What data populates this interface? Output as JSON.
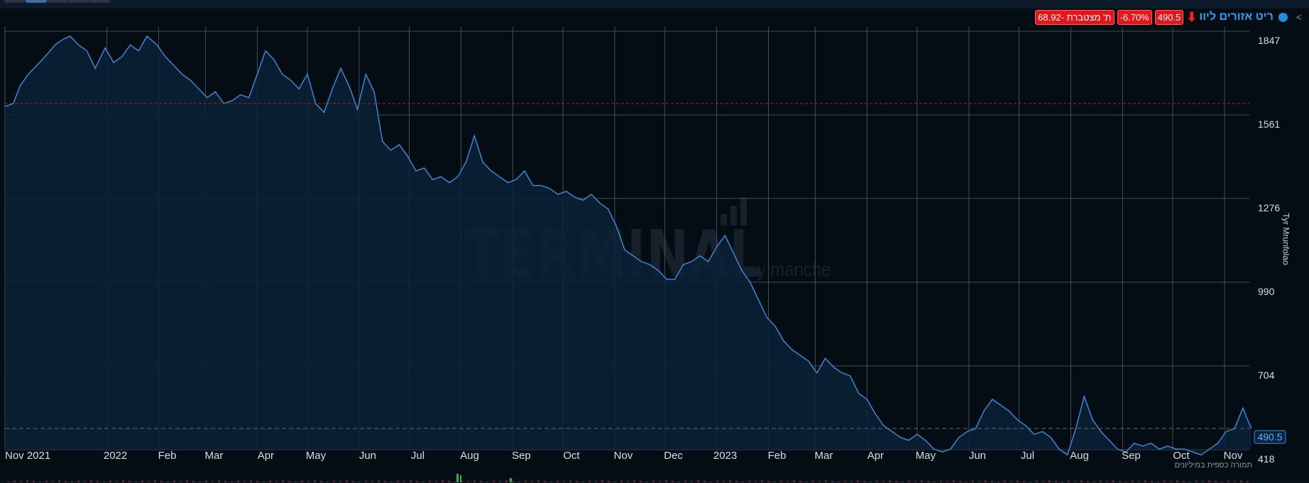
{
  "header": {
    "caret": "<",
    "stock_name": "ריט אזורים ליוו",
    "arrow": "⬇",
    "last_price": "490.5",
    "change_pct": "-6.70%",
    "cumulative_label": "ת' מצטברת -68.92"
  },
  "watermark": {
    "main": "TERMINAL",
    "sub": "by kay manche"
  },
  "volume_note": "תמורה כספית במיליונים",
  "side_text": "Tyr Mrunfolao",
  "colors": {
    "background": "#040d14",
    "line": "#3d8ee0",
    "fill": "#0b2236",
    "grid": "#4a5560",
    "badge": "#e8141c",
    "accent": "#1e8fe0"
  },
  "chart_data": {
    "type": "area",
    "title": "",
    "xlabel": "",
    "ylabel": "",
    "ylim": [
      418,
      1847
    ],
    "y_ticks": [
      1847,
      1561,
      1276,
      990,
      704,
      418
    ],
    "x_tick_labels": [
      "Nov 2021",
      "2022",
      "Feb",
      "Mar",
      "Apr",
      "May",
      "Jun",
      "Jul",
      "Aug",
      "Sep",
      "Oct",
      "Nov",
      "Dec",
      "2023",
      "Feb",
      "Mar",
      "Apr",
      "May",
      "Jun",
      "Jul",
      "Aug",
      "Sep",
      "Oct",
      "Nov"
    ],
    "x_tick_dates": [
      "2021-11-01",
      "2022-01-01",
      "2022-02-01",
      "2022-03-01",
      "2022-04-01",
      "2022-05-01",
      "2022-06-01",
      "2022-07-01",
      "2022-08-01",
      "2022-09-01",
      "2022-10-01",
      "2022-11-01",
      "2022-12-01",
      "2023-01-01",
      "2023-02-01",
      "2023-03-01",
      "2023-04-01",
      "2023-05-01",
      "2023-06-01",
      "2023-07-01",
      "2023-08-01",
      "2023-09-01",
      "2023-10-01",
      "2023-11-01"
    ],
    "last_value": 490.5,
    "reference_line": 1600,
    "dashed_level": 490.5,
    "grid": true,
    "series": [
      {
        "dates": [
          "2021-11-01",
          "2021-11-06",
          "2021-11-10",
          "2021-11-15",
          "2021-11-20",
          "2021-11-25",
          "2021-12-01",
          "2021-12-06",
          "2021-12-10",
          "2021-12-15",
          "2021-12-20",
          "2021-12-25",
          "2021-12-31",
          "2022-01-05",
          "2022-01-10",
          "2022-01-15",
          "2022-01-20",
          "2022-01-25",
          "2022-01-31",
          "2022-02-05",
          "2022-02-10",
          "2022-02-15",
          "2022-02-20",
          "2022-02-25",
          "2022-03-02",
          "2022-03-07",
          "2022-03-12",
          "2022-03-17",
          "2022-03-22",
          "2022-03-27",
          "2022-04-01",
          "2022-04-06",
          "2022-04-11",
          "2022-04-16",
          "2022-04-21",
          "2022-04-26",
          "2022-05-01",
          "2022-05-06",
          "2022-05-11",
          "2022-05-16",
          "2022-05-21",
          "2022-05-26",
          "2022-05-31",
          "2022-06-05",
          "2022-06-10",
          "2022-06-15",
          "2022-06-20",
          "2022-06-25",
          "2022-06-30",
          "2022-07-05",
          "2022-07-10",
          "2022-07-15",
          "2022-07-20",
          "2022-07-25",
          "2022-07-30",
          "2022-08-04",
          "2022-08-09",
          "2022-08-14",
          "2022-08-19",
          "2022-08-24",
          "2022-08-29",
          "2022-09-03",
          "2022-09-08",
          "2022-09-13",
          "2022-09-18",
          "2022-09-23",
          "2022-09-28",
          "2022-10-03",
          "2022-10-08",
          "2022-10-13",
          "2022-10-18",
          "2022-10-23",
          "2022-10-28",
          "2022-11-02",
          "2022-11-07",
          "2022-11-12",
          "2022-11-17",
          "2022-11-22",
          "2022-11-27",
          "2022-12-02",
          "2022-12-07",
          "2022-12-12",
          "2022-12-17",
          "2022-12-22",
          "2022-12-27",
          "2023-01-01",
          "2023-01-06",
          "2023-01-11",
          "2023-01-16",
          "2023-01-21",
          "2023-01-26",
          "2023-01-31",
          "2023-02-05",
          "2023-02-10",
          "2023-02-15",
          "2023-02-20",
          "2023-02-25",
          "2023-03-02",
          "2023-03-07",
          "2023-03-12",
          "2023-03-17",
          "2023-03-22",
          "2023-03-27",
          "2023-04-01",
          "2023-04-06",
          "2023-04-11",
          "2023-04-16",
          "2023-04-21",
          "2023-04-26",
          "2023-05-01",
          "2023-05-06",
          "2023-05-11",
          "2023-05-16",
          "2023-05-21",
          "2023-05-26",
          "2023-05-31",
          "2023-06-05",
          "2023-06-10",
          "2023-06-15",
          "2023-06-20",
          "2023-06-25",
          "2023-06-30",
          "2023-07-05",
          "2023-07-10",
          "2023-07-15",
          "2023-07-20",
          "2023-07-25",
          "2023-07-30",
          "2023-08-04",
          "2023-08-09",
          "2023-08-14",
          "2023-08-19",
          "2023-08-24",
          "2023-08-29",
          "2023-09-03",
          "2023-09-08",
          "2023-09-13",
          "2023-09-18",
          "2023-09-23",
          "2023-09-28",
          "2023-10-03",
          "2023-10-08",
          "2023-10-13",
          "2023-10-18",
          "2023-10-23",
          "2023-10-28",
          "2023-11-02",
          "2023-11-07",
          "2023-11-12",
          "2023-11-17"
        ],
        "values": [
          1590,
          1600,
          1660,
          1700,
          1730,
          1760,
          1800,
          1820,
          1830,
          1800,
          1780,
          1720,
          1790,
          1740,
          1760,
          1800,
          1780,
          1830,
          1800,
          1760,
          1730,
          1700,
          1680,
          1650,
          1620,
          1640,
          1600,
          1610,
          1630,
          1620,
          1700,
          1780,
          1750,
          1700,
          1680,
          1650,
          1700,
          1600,
          1570,
          1650,
          1720,
          1660,
          1580,
          1700,
          1640,
          1470,
          1440,
          1460,
          1420,
          1370,
          1380,
          1340,
          1350,
          1330,
          1350,
          1400,
          1490,
          1400,
          1370,
          1350,
          1330,
          1340,
          1370,
          1320,
          1320,
          1310,
          1290,
          1300,
          1280,
          1270,
          1290,
          1260,
          1240,
          1180,
          1100,
          1080,
          1060,
          1050,
          1030,
          1000,
          1000,
          1050,
          1060,
          1080,
          1060,
          1110,
          1150,
          1090,
          1030,
          990,
          930,
          870,
          840,
          790,
          760,
          740,
          720,
          680,
          730,
          700,
          680,
          670,
          610,
          590,
          540,
          500,
          480,
          460,
          450,
          470,
          450,
          420,
          410,
          420,
          460,
          480,
          490,
          550,
          590,
          570,
          550,
          520,
          500,
          470,
          480,
          460,
          420,
          400,
          490,
          600,
          520,
          480,
          450,
          420,
          410,
          440,
          430,
          440,
          420,
          430,
          420,
          420,
          410,
          400,
          420,
          440,
          480,
          490,
          560,
          490
        ]
      }
    ]
  }
}
